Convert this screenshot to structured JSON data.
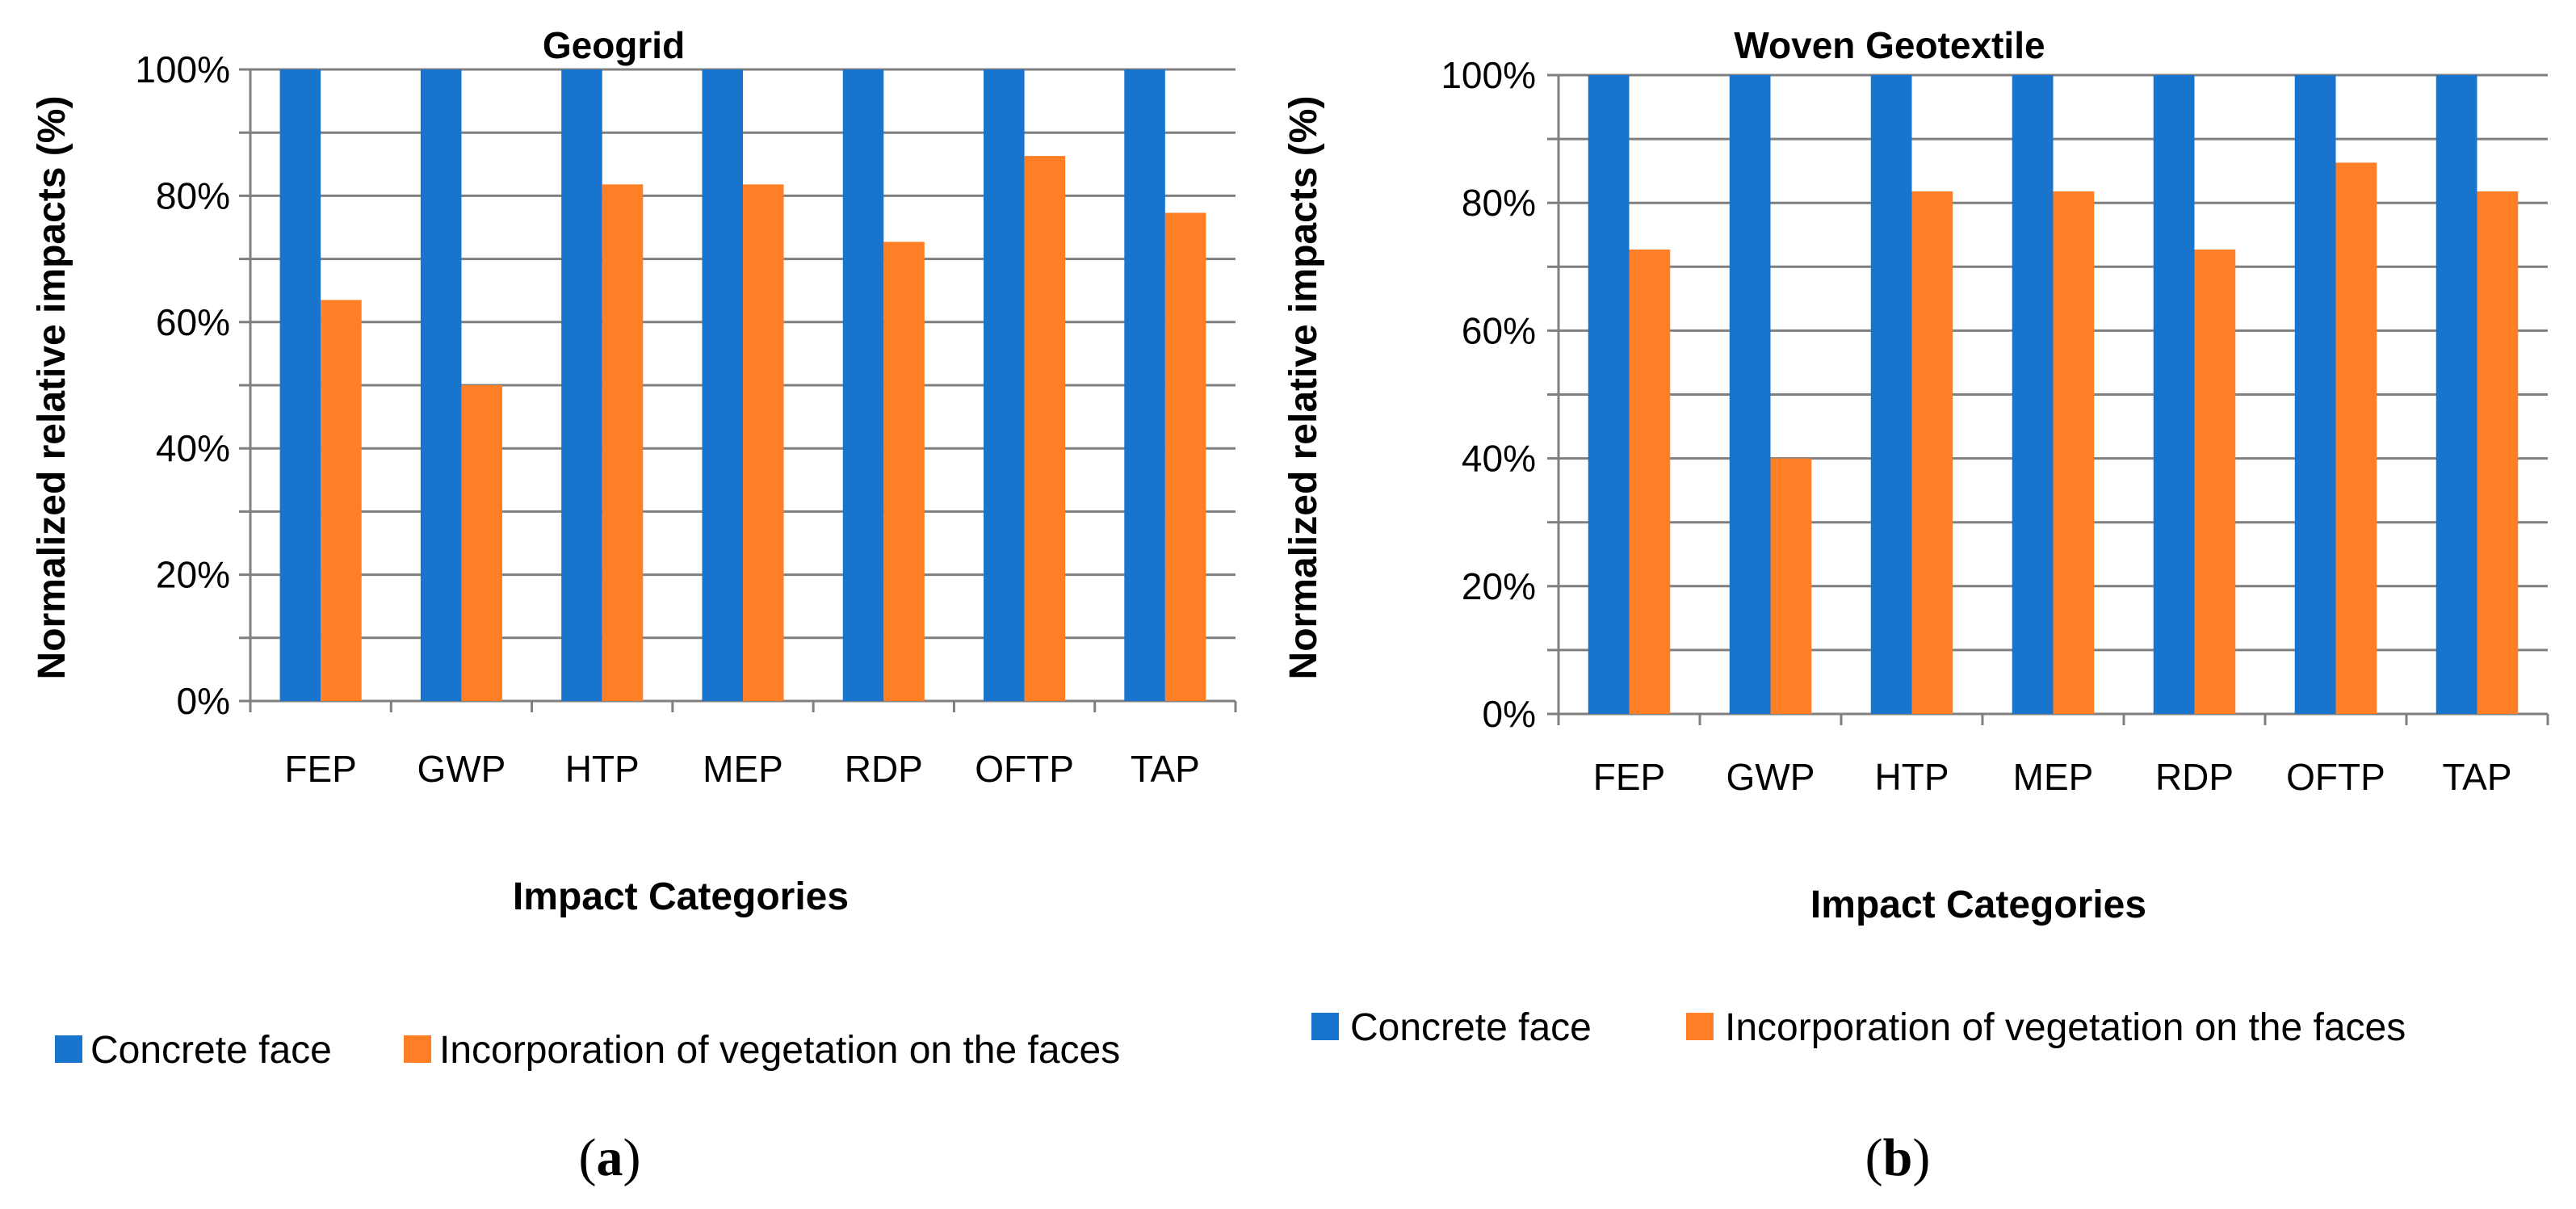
{
  "colors": {
    "concrete": "#1874CD",
    "vegetation": "#FF7F27"
  },
  "chart_data": [
    {
      "type": "bar",
      "title": "Geogrid",
      "xlabel": "Impact Categories",
      "ylabel": "Normalized relative impacts (%)",
      "ylim": [
        0,
        100
      ],
      "yticks": [
        "0%",
        "20%",
        "40%",
        "60%",
        "80%",
        "100%"
      ],
      "categories": [
        "FEP",
        "GWP",
        "HTP",
        "MEP",
        "RDP",
        "OFTP",
        "TAP"
      ],
      "series": [
        {
          "name": "Concrete face",
          "values": [
            100,
            100,
            100,
            100,
            100,
            100,
            100
          ]
        },
        {
          "name": "Incorporation of vegetation on the faces",
          "values": [
            63.5,
            50,
            81.8,
            81.8,
            72.7,
            86.3,
            77.3
          ]
        }
      ],
      "legend": "bottom",
      "grid": true,
      "panel_open": "(",
      "panel_letter": "a",
      "panel_close": ")"
    },
    {
      "type": "bar",
      "title": "Woven Geotextile",
      "xlabel": "Impact Categories",
      "ylabel": "Normalized relative impacts (%)",
      "ylim": [
        0,
        100
      ],
      "yticks": [
        "0%",
        "20%",
        "40%",
        "60%",
        "80%",
        "100%"
      ],
      "categories": [
        "FEP",
        "GWP",
        "HTP",
        "MEP",
        "RDP",
        "OFTP",
        "TAP"
      ],
      "series": [
        {
          "name": "Concrete face",
          "values": [
            100,
            100,
            100,
            100,
            100,
            100,
            100
          ]
        },
        {
          "name": "Incorporation of vegetation on the faces",
          "values": [
            72.7,
            40,
            81.8,
            81.8,
            72.7,
            86.3,
            81.8
          ]
        }
      ],
      "legend": "bottom",
      "grid": true,
      "panel_open": "(",
      "panel_letter": "b",
      "panel_close": ")"
    }
  ]
}
